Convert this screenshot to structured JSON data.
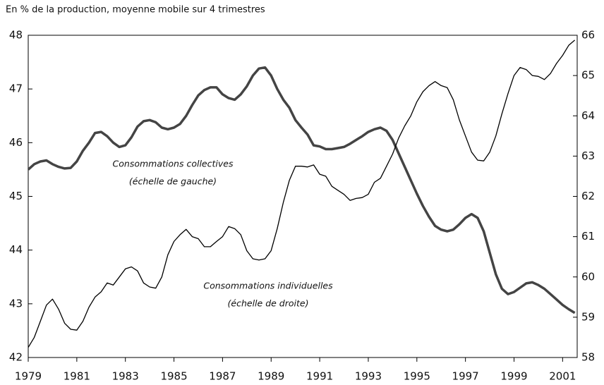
{
  "chart_data": {
    "type": "line",
    "subtitle": "En % de la production, moyenne mobile sur 4 trimestres",
    "x": [
      1979,
      1979.25,
      1979.5,
      1979.75,
      1980,
      1980.25,
      1980.5,
      1980.75,
      1981,
      1981.25,
      1981.5,
      1981.75,
      1982,
      1982.25,
      1982.5,
      1982.75,
      1983,
      1983.25,
      1983.5,
      1983.75,
      1984,
      1984.25,
      1984.5,
      1984.75,
      1985,
      1985.25,
      1985.5,
      1985.75,
      1986,
      1986.25,
      1986.5,
      1986.75,
      1987,
      1987.25,
      1987.5,
      1987.75,
      1988,
      1988.25,
      1988.5,
      1988.75,
      1989,
      1989.25,
      1989.5,
      1989.75,
      1990,
      1990.25,
      1990.5,
      1990.75,
      1991,
      1991.25,
      1991.5,
      1991.75,
      1992,
      1992.25,
      1992.5,
      1992.75,
      1993,
      1993.25,
      1993.5,
      1993.75,
      1994,
      1994.25,
      1994.5,
      1994.75,
      1995,
      1995.25,
      1995.5,
      1995.75,
      1996,
      1996.25,
      1996.5,
      1996.75,
      1997,
      1997.25,
      1997.5,
      1997.75,
      1998,
      1998.25,
      1998.5,
      1998.75,
      1999,
      1999.25,
      1999.5,
      1999.75,
      2000,
      2000.25,
      2000.5,
      2000.75,
      2001,
      2001.25,
      2001.5
    ],
    "series": [
      {
        "name": "Consommations collectives",
        "scale_note": "(échelle de gauche)",
        "color": "#444444",
        "axis": "y",
        "values": [
          45.5,
          45.6,
          45.65,
          45.67,
          45.6,
          45.55,
          45.52,
          45.53,
          45.65,
          45.85,
          46.0,
          46.18,
          46.2,
          46.12,
          46.0,
          45.92,
          45.95,
          46.1,
          46.3,
          46.4,
          46.42,
          46.38,
          46.28,
          46.25,
          46.28,
          46.35,
          46.5,
          46.7,
          46.88,
          46.98,
          47.03,
          47.03,
          46.9,
          46.83,
          46.8,
          46.9,
          47.05,
          47.25,
          47.38,
          47.4,
          47.25,
          47.0,
          46.8,
          46.65,
          46.42,
          46.28,
          46.15,
          45.95,
          45.93,
          45.88,
          45.88,
          45.9,
          45.92,
          45.98,
          46.05,
          46.12,
          46.2,
          46.25,
          46.28,
          46.22,
          46.05,
          45.8,
          45.55,
          45.3,
          45.05,
          44.82,
          44.62,
          44.45,
          44.38,
          44.35,
          44.38,
          44.48,
          44.6,
          44.67,
          44.6,
          44.35,
          43.95,
          43.55,
          43.28,
          43.18,
          43.22,
          43.3,
          43.38,
          43.4,
          43.35,
          43.28,
          43.18,
          43.08,
          42.98,
          42.9,
          42.83
        ]
      },
      {
        "name": "Consommations individuelles",
        "scale_note": "(échelle de droite)",
        "color": "#000000",
        "axis": "y2",
        "values": [
          58.25,
          58.5,
          58.9,
          59.3,
          59.45,
          59.2,
          58.85,
          58.7,
          58.68,
          58.9,
          59.25,
          59.5,
          59.63,
          59.85,
          59.8,
          60.0,
          60.2,
          60.25,
          60.15,
          59.85,
          59.75,
          59.72,
          60.0,
          60.55,
          60.88,
          61.05,
          61.18,
          61.0,
          60.95,
          60.75,
          60.75,
          60.88,
          61.0,
          61.25,
          61.2,
          61.05,
          60.65,
          60.45,
          60.42,
          60.45,
          60.65,
          61.2,
          61.85,
          62.4,
          62.75,
          62.75,
          62.73,
          62.78,
          62.55,
          62.5,
          62.25,
          62.15,
          62.05,
          61.9,
          61.95,
          61.97,
          62.05,
          62.35,
          62.45,
          62.75,
          63.05,
          63.45,
          63.75,
          64.0,
          64.35,
          64.6,
          64.75,
          64.85,
          64.75,
          64.7,
          64.4,
          63.9,
          63.5,
          63.1,
          62.9,
          62.88,
          63.1,
          63.5,
          64.05,
          64.55,
          65.0,
          65.2,
          65.15,
          65.0,
          64.98,
          64.9,
          65.05,
          65.3,
          65.5,
          65.75,
          65.88
        ]
      }
    ],
    "xlim": [
      1979,
      2001.6
    ],
    "xticks": [
      1979,
      1981,
      1983,
      1985,
      1987,
      1989,
      1991,
      1993,
      1995,
      1997,
      1999,
      2001
    ],
    "ylim": [
      42,
      48
    ],
    "yticks": [
      42,
      43,
      44,
      45,
      46,
      47,
      48
    ],
    "y2lim": [
      58,
      66
    ],
    "y2ticks": [
      58,
      59,
      60,
      61,
      62,
      63,
      64,
      65,
      66
    ]
  }
}
